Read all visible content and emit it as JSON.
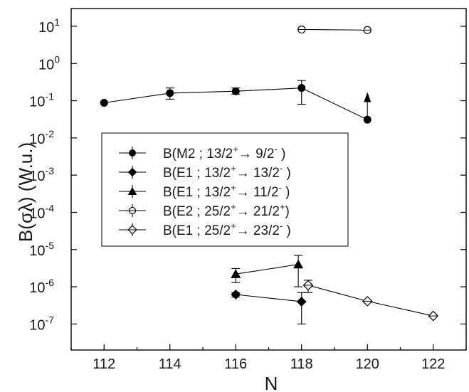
{
  "chart_data": {
    "type": "scatter",
    "title": "",
    "xlabel": "N",
    "ylabel": "B(σλ) (W.u.)",
    "xlim": [
      111,
      123
    ],
    "ylim": [
      2e-08,
      30
    ],
    "y_scale": "log",
    "x_ticks": [
      112,
      114,
      116,
      118,
      120,
      122
    ],
    "x_tick_labels": [
      "112",
      "114",
      "116",
      "118",
      "120",
      "122"
    ],
    "y_ticks": [
      {
        "value": 1e-07,
        "base": "10",
        "exp": "-7"
      },
      {
        "value": 1e-06,
        "base": "10",
        "exp": "-6"
      },
      {
        "value": 1e-05,
        "base": "10",
        "exp": "-5"
      },
      {
        "value": 0.0001,
        "base": "10",
        "exp": "-4"
      },
      {
        "value": 0.001,
        "base": "10",
        "exp": "-3"
      },
      {
        "value": 0.01,
        "base": "10",
        "exp": "-2"
      },
      {
        "value": 0.1,
        "base": "10",
        "exp": "-1"
      },
      {
        "value": 1,
        "base": "10",
        "exp": "0"
      },
      {
        "value": 10,
        "base": "10",
        "exp": "1"
      }
    ],
    "legend_position": "center-left",
    "series": [
      {
        "name": "B(M2 ; 13/2+→ 9/2- )",
        "legend": {
          "pre": "B(M2 ; 13/2",
          "s1": "+",
          "mid": "→ 9/2",
          "s2": "-",
          "post": " )"
        },
        "marker": "circle-filled",
        "points": [
          {
            "x": 112,
            "y": 0.088
          },
          {
            "x": 114,
            "y": 0.16,
            "ylo": 0.11,
            "yhi": 0.22
          },
          {
            "x": 116,
            "y": 0.18,
            "ylo": 0.15,
            "yhi": 0.22
          },
          {
            "x": 118,
            "y": 0.22,
            "ylo": 0.08,
            "yhi": 0.35
          },
          {
            "x": 120,
            "y": 0.031,
            "arrow_up_to": 0.17
          }
        ]
      },
      {
        "name": "B(E1 ; 13/2+→ 13/2- )",
        "legend": {
          "pre": "B(E1 ; 13/2",
          "s1": "+",
          "mid": "→ 13/2",
          "s2": "-",
          "post": " )"
        },
        "marker": "diamond-filled",
        "points": [
          {
            "x": 116,
            "y": 6.2e-07,
            "ylo": 5.3e-07,
            "yhi": 7e-07
          },
          {
            "x": 118,
            "y": 4e-07,
            "ylo": 1e-07,
            "yhi": 7e-07
          }
        ]
      },
      {
        "name": "B(E1 ; 13/2+→ 11/2- )",
        "legend": {
          "pre": "B(E1 ; 13/2",
          "s1": "+",
          "mid": "→ 11/2",
          "s2": "-",
          "post": " )"
        },
        "marker": "triangle-filled",
        "points": [
          {
            "x": 116,
            "y": 2.2e-06,
            "ylo": 1.3e-06,
            "yhi": 3.1e-06
          },
          {
            "x": 117.9,
            "y": 4e-06,
            "ylo": 1e-06,
            "yhi": 7e-06
          }
        ]
      },
      {
        "name": "B(E2 ; 25/2+→ 21/2+)",
        "legend": {
          "pre": "B(E2 ; 25/2",
          "s1": "+",
          "mid": "→ 21/2",
          "s2": "+",
          "post": ")"
        },
        "marker": "circle-open-cross",
        "points": [
          {
            "x": 118,
            "y": 8.2
          },
          {
            "x": 120,
            "y": 7.9
          }
        ]
      },
      {
        "name": "B(E1 ; 25/2+→ 23/2- )",
        "legend": {
          "pre": "B(E1 ; 25/2",
          "s1": "+",
          "mid": "→ 23/2",
          "s2": "-",
          "post": " )"
        },
        "marker": "diamond-open-cross",
        "points": [
          {
            "x": 118.2,
            "y": 1.1e-06,
            "ylo": 7e-07,
            "yhi": 1.5e-06
          },
          {
            "x": 120,
            "y": 4.1e-07
          },
          {
            "x": 122,
            "y": 1.65e-07
          }
        ]
      }
    ]
  }
}
